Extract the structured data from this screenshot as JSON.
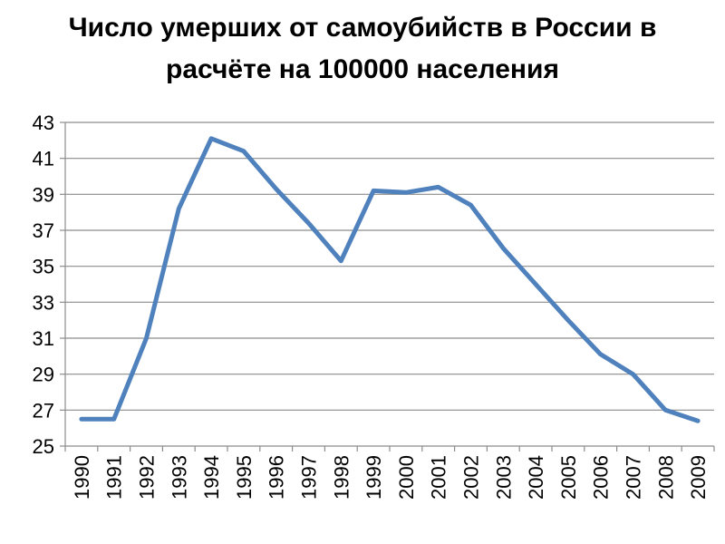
{
  "chart_data": {
    "type": "line",
    "title": "Число умерших от самоубийств в России в\nрасчёте на 100000 населения",
    "x": [
      "1990",
      "1991",
      "1992",
      "1993",
      "1994",
      "1995",
      "1996",
      "1997",
      "1998",
      "1999",
      "2000",
      "2001",
      "2002",
      "2003",
      "2004",
      "2005",
      "2006",
      "2007",
      "2008",
      "2009"
    ],
    "series": [
      {
        "values": [
          26.5,
          26.5,
          31.0,
          38.2,
          42.1,
          41.4,
          39.3,
          37.4,
          35.3,
          39.2,
          39.1,
          39.4,
          38.4,
          36.0,
          34.0,
          32.0,
          30.1,
          29.0,
          27.0,
          26.4
        ],
        "color": "#4f81bd"
      }
    ],
    "ylim": [
      25,
      43
    ],
    "yticks": [
      25,
      27,
      29,
      31,
      33,
      35,
      37,
      39,
      41,
      43
    ],
    "xlabel": "",
    "ylabel": "",
    "grid": true,
    "legend": "none"
  }
}
